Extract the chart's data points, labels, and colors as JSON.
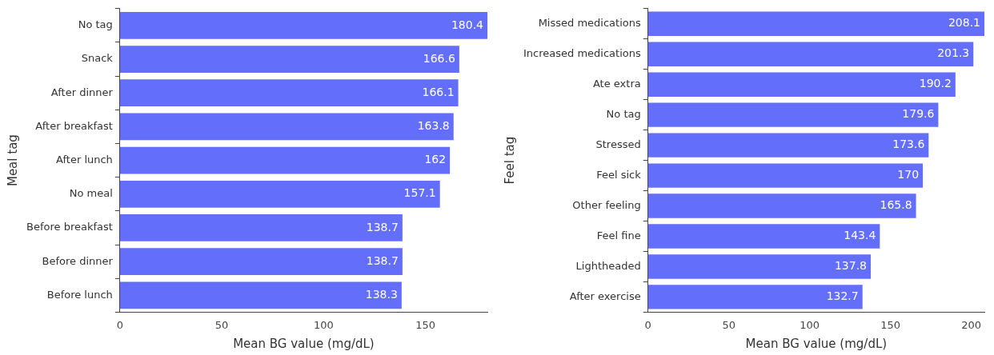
{
  "chart_data": [
    {
      "type": "bar",
      "orientation": "horizontal",
      "ylabel": "Meal tag",
      "xlabel": "Mean BG value (mg/dL)",
      "categories": [
        "No tag",
        "Snack",
        "After dinner",
        "After breakfast",
        "After lunch",
        "No meal",
        "Before breakfast",
        "Before dinner",
        "Before lunch"
      ],
      "values": [
        180.4,
        166.6,
        166.1,
        163.8,
        162,
        157.1,
        138.7,
        138.7,
        138.3
      ],
      "color": "#636efa",
      "xlim": [
        0,
        180.4
      ],
      "xticks": [
        0,
        50,
        100,
        150
      ],
      "grid": false,
      "data_labels": true
    },
    {
      "type": "bar",
      "orientation": "horizontal",
      "ylabel": "Feel tag",
      "xlabel": "Mean BG value (mg/dL)",
      "categories": [
        "Missed medications",
        "Increased medications",
        "Ate extra",
        "No tag",
        "Stressed",
        "Feel sick",
        "Other feeling",
        "Feel fine",
        "Lightheaded",
        "After exercise"
      ],
      "values": [
        208.1,
        201.3,
        190.2,
        179.6,
        173.6,
        170,
        165.8,
        143.4,
        137.8,
        132.7
      ],
      "color": "#636efa",
      "xlim": [
        0,
        208.1
      ],
      "xticks": [
        0,
        50,
        100,
        150,
        200
      ],
      "grid": false,
      "data_labels": true
    }
  ]
}
